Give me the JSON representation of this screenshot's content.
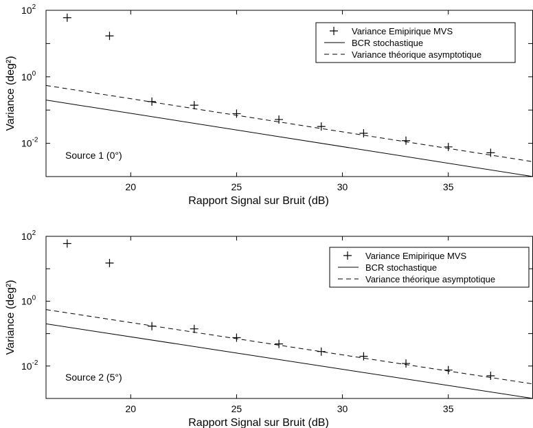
{
  "chart_data": [
    {
      "type": "line",
      "title": "",
      "annotation": "Source 1 (0°)",
      "xlabel": "Rapport Signal sur Bruit (dB)",
      "ylabel": "Variance (deg²)",
      "xlim": [
        16,
        39
      ],
      "ylim": [
        0.001,
        100
      ],
      "yscale": "log",
      "grid": false,
      "legend_position": "top-right",
      "x_ticks": [
        20,
        25,
        30,
        35
      ],
      "x_tick_labels": [
        "20",
        "25",
        "30",
        "35"
      ],
      "y_ticks": [
        0.01,
        1,
        100
      ],
      "y_tick_labels": [
        {
          "base": "10",
          "exp": "-2"
        },
        {
          "base": "10",
          "exp": "0"
        },
        {
          "base": "10",
          "exp": "2"
        }
      ],
      "series": [
        {
          "name": "Variance Emipirique MVS",
          "style": "plus-markers",
          "x": [
            17,
            19,
            21,
            23,
            25,
            27,
            29,
            31,
            33,
            35,
            37
          ],
          "y": [
            60,
            17,
            0.18,
            0.14,
            0.078,
            0.052,
            0.032,
            0.02,
            0.012,
            0.0078,
            0.0052
          ]
        },
        {
          "name": "BCR stochastique",
          "style": "solid",
          "x": [
            16,
            39
          ],
          "y": [
            0.2,
            0.001
          ]
        },
        {
          "name": "Variance théorique asymptotique",
          "style": "dashed",
          "x": [
            16,
            39
          ],
          "y": [
            0.55,
            0.0028
          ]
        }
      ]
    },
    {
      "type": "line",
      "title": "",
      "annotation": "Source 2 (5°)",
      "xlabel": "Rapport Signal sur Bruit (dB)",
      "ylabel": "Variance (deg²)",
      "xlim": [
        16,
        39
      ],
      "ylim": [
        0.001,
        100
      ],
      "yscale": "log",
      "grid": false,
      "legend_position": "top-right",
      "x_ticks": [
        20,
        25,
        30,
        35
      ],
      "x_tick_labels": [
        "20",
        "25",
        "30",
        "35"
      ],
      "y_ticks": [
        0.01,
        1,
        100
      ],
      "y_tick_labels": [
        {
          "base": "10",
          "exp": "-2"
        },
        {
          "base": "10",
          "exp": "0"
        },
        {
          "base": "10",
          "exp": "2"
        }
      ],
      "series": [
        {
          "name": "Variance Emipirique MVS",
          "style": "plus-markers",
          "x": [
            17,
            19,
            21,
            23,
            25,
            27,
            29,
            31,
            33,
            35,
            37
          ],
          "y": [
            60,
            15,
            0.17,
            0.14,
            0.075,
            0.048,
            0.028,
            0.02,
            0.012,
            0.0075,
            0.005
          ]
        },
        {
          "name": "BCR stochastique",
          "style": "solid",
          "x": [
            16,
            39
          ],
          "y": [
            0.2,
            0.001
          ]
        },
        {
          "name": "Variance théorique asymptotique",
          "style": "dashed",
          "x": [
            16,
            39
          ],
          "y": [
            0.55,
            0.0028
          ]
        }
      ]
    }
  ]
}
